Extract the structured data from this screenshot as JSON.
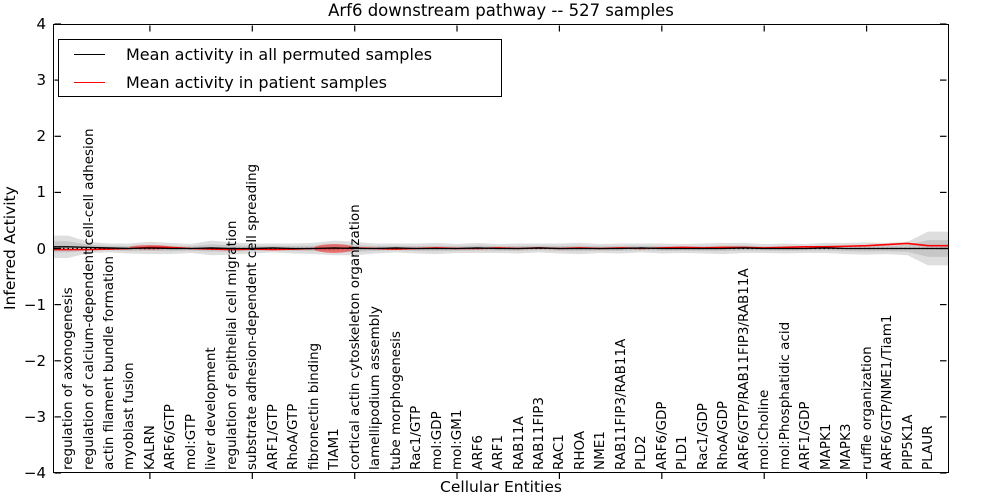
{
  "title": "Arf6 downstream pathway -- 527 samples",
  "axes": {
    "ylabel": "Inferred Activity",
    "xlabel": "Cellular Entities",
    "yticks": [
      {
        "value": 4,
        "label": "4"
      },
      {
        "value": 3,
        "label": "3"
      },
      {
        "value": 2,
        "label": "2"
      },
      {
        "value": 1,
        "label": "1"
      },
      {
        "value": 0,
        "label": "0"
      },
      {
        "value": -1,
        "label": "−1"
      },
      {
        "value": -2,
        "label": "−2"
      },
      {
        "value": -3,
        "label": "−3"
      },
      {
        "value": -4,
        "label": "−4"
      }
    ]
  },
  "legend": {
    "items": [
      {
        "label": "Mean activity in all permuted samples",
        "color": "#000000"
      },
      {
        "label": "Mean activity in patient samples",
        "color": "#ff0000"
      }
    ]
  },
  "chart_data": {
    "type": "line",
    "title": "Arf6 downstream pathway -- 527 samples",
    "xlabel": "Cellular Entities",
    "ylabel": "Inferred Activity",
    "ylim": [
      -4,
      4
    ],
    "grid": false,
    "legend_position": "upper left",
    "categories": [
      "regulation of axonogenesis",
      "regulation of calcium-dependent cell-cell adhesion",
      "actin filament bundle formation",
      "myoblast fusion",
      "KALRN",
      "ARF6/GTP",
      "mol:GTP",
      "liver development",
      "regulation of epithelial cell migration",
      "substrate adhesion-dependent cell spreading",
      "ARF1/GTP",
      "RhoA/GTP",
      "fibronectin binding",
      "TIAM1",
      "cortical actin cytoskeleton organization",
      "lamellipodium assembly",
      "tube morphogenesis",
      "Rac1/GTP",
      "mol:GDP",
      "mol:GM1",
      "ARF6",
      "ARF1",
      "RAB11A",
      "RAB11FIP3",
      "RAC1",
      "RHOA",
      "NME1",
      "RAB11FIP3/RAB11A",
      "PLD2",
      "ARF6/GDP",
      "PLD1",
      "Rac1/GDP",
      "RhoA/GDP",
      "ARF6/GTP/RAB11FIP3/RAB11A",
      "mol:Choline",
      "mol:Phosphatidic acid",
      "ARF1/GDP",
      "MAPK1",
      "MAPK3",
      "ruffle organization",
      "ARF6/GTP/NME1/Tiam1",
      "PIP5K1A",
      "PLAUR"
    ],
    "series": [
      {
        "name": "Mean activity in all permuted samples",
        "color": "#000000",
        "values": [
          0.03,
          0.02,
          0.01,
          0.0,
          0.01,
          0.0,
          0.0,
          0.01,
          0.0,
          0.0,
          0.01,
          0.0,
          0.0,
          0.01,
          0.0,
          0.0,
          0.01,
          0.0,
          0.0,
          0.0,
          0.01,
          0.0,
          0.0,
          0.01,
          0.0,
          0.0,
          0.0,
          0.0,
          0.01,
          0.0,
          0.0,
          0.0,
          0.0,
          0.01,
          0.0,
          0.0,
          0.0,
          0.01,
          0.0,
          0.0,
          0.0,
          0.0,
          0.0
        ]
      },
      {
        "name": "Mean activity in patient samples",
        "color": "#ff0000",
        "values": [
          -0.02,
          -0.02,
          -0.01,
          0.0,
          0.02,
          0.02,
          0.0,
          -0.01,
          -0.02,
          -0.01,
          -0.02,
          -0.01,
          0.0,
          0.0,
          0.01,
          0.0,
          -0.01,
          0.0,
          0.01,
          0.0,
          0.0,
          0.01,
          0.0,
          0.01,
          0.0,
          0.01,
          0.0,
          0.01,
          0.0,
          0.01,
          0.02,
          0.01,
          0.02,
          0.02,
          0.01,
          0.02,
          0.03,
          0.03,
          0.04,
          0.05,
          0.07,
          0.09,
          0.05
        ]
      }
    ],
    "permuted_band_half_widths": [
      0.2,
      0.1,
      0.08,
      0.09,
      0.11,
      0.1,
      0.08,
      0.13,
      0.11,
      0.09,
      0.08,
      0.09,
      0.1,
      0.13,
      0.12,
      0.09,
      0.08,
      0.09,
      0.1,
      0.08,
      0.09,
      0.08,
      0.09,
      0.08,
      0.09,
      0.1,
      0.08,
      0.09,
      0.08,
      0.09,
      0.08,
      0.09,
      0.1,
      0.09,
      0.08,
      0.09,
      0.08,
      0.09,
      0.1,
      0.11,
      0.1,
      0.12,
      0.3
    ],
    "patient_bumps": [
      {
        "category": "KALRN",
        "index": 4,
        "half_width": 0.04
      },
      {
        "category": "TIAM1",
        "index": 13,
        "half_width": 0.08
      }
    ],
    "zero_line": {
      "value": 0,
      "style": "dotted",
      "color": "#000000"
    },
    "band_color": "#d9d9d9"
  }
}
